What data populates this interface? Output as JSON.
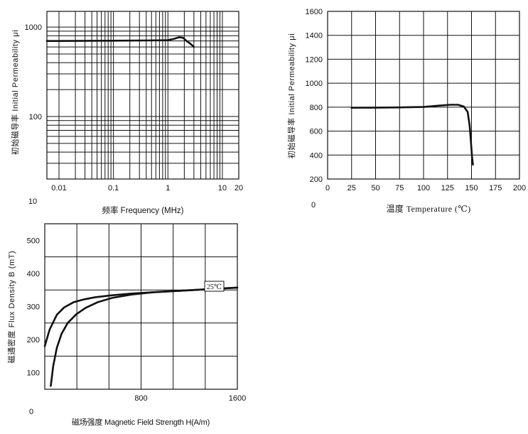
{
  "chart_data": [
    {
      "type": "line",
      "xlabel": "频率 Frequency (MHz)",
      "ylabel": "初始磁导率 Initial Permeability μi",
      "x_scale": "log",
      "y_scale": "log",
      "xlim": [
        0.006,
        20
      ],
      "ylim": [
        20,
        1500
      ],
      "grid": true,
      "xticks": [
        {
          "value": 0.01,
          "label": "0.01"
        },
        {
          "value": 0.1,
          "label": "0.1"
        },
        {
          "value": 1,
          "label": "1"
        },
        {
          "value": 10,
          "label": "10"
        },
        {
          "value": 20,
          "label": "20"
        }
      ],
      "yticks": [
        {
          "value": 100,
          "label": "100"
        },
        {
          "value": 1000,
          "label": "1000"
        }
      ],
      "corner_label": "10",
      "series": [
        {
          "x": [
            0.006,
            0.01,
            0.1,
            0.5,
            1.0,
            1.3,
            1.6,
            1.9,
            2.2,
            2.6,
            3.0
          ],
          "y": [
            700,
            700,
            705,
            710,
            715,
            740,
            770,
            760,
            700,
            650,
            600
          ]
        }
      ]
    },
    {
      "type": "line",
      "xlabel": "温度 Temperature (℃)",
      "ylabel": "初始磁导率 Initial Permeability μi",
      "xlim": [
        0,
        200
      ],
      "ylim": [
        200,
        1600
      ],
      "grid": true,
      "xticks": [
        0,
        25,
        50,
        75,
        100,
        125,
        150,
        175,
        200
      ],
      "yticks": [
        200,
        400,
        600,
        800,
        1000,
        1200,
        1400,
        1600
      ],
      "corner_label": "0",
      "series": [
        {
          "x": [
            25,
            50,
            75,
            100,
            115,
            128,
            136,
            142,
            146,
            148,
            149.5,
            150.5,
            151.5
          ],
          "y": [
            795,
            796,
            798,
            802,
            812,
            820,
            820,
            805,
            760,
            650,
            500,
            390,
            320
          ]
        }
      ]
    },
    {
      "type": "line",
      "xlabel": "磁场强度 Magnetic Field Strength H(A/m)",
      "ylabel": "磁通密度 Flux Density B (mT)",
      "xlim": [
        0,
        1600
      ],
      "ylim": [
        50,
        550
      ],
      "grid": true,
      "xticks": [
        {
          "value": 800,
          "label": "800"
        },
        {
          "value": 1600,
          "label": "1600"
        }
      ],
      "yticks": [
        100,
        200,
        300,
        400,
        500
      ],
      "corner_label": "0",
      "annotation": "25℃",
      "series": [
        {
          "x": [
            0,
            40,
            100,
            160,
            240,
            320,
            420,
            560,
            720,
            900,
            1100,
            1300,
            1450,
            1600
          ],
          "y": [
            180,
            230,
            275,
            297,
            313,
            321,
            328,
            334,
            339,
            343,
            347,
            351,
            354,
            357
          ]
        },
        {
          "x": [
            50,
            70,
            100,
            140,
            190,
            260,
            340,
            440,
            560,
            720,
            900,
            1100,
            1300,
            1450,
            1600
          ],
          "y": [
            60,
            120,
            175,
            218,
            250,
            276,
            296,
            313,
            326,
            336,
            343,
            347,
            351,
            354,
            357
          ]
        }
      ]
    }
  ]
}
